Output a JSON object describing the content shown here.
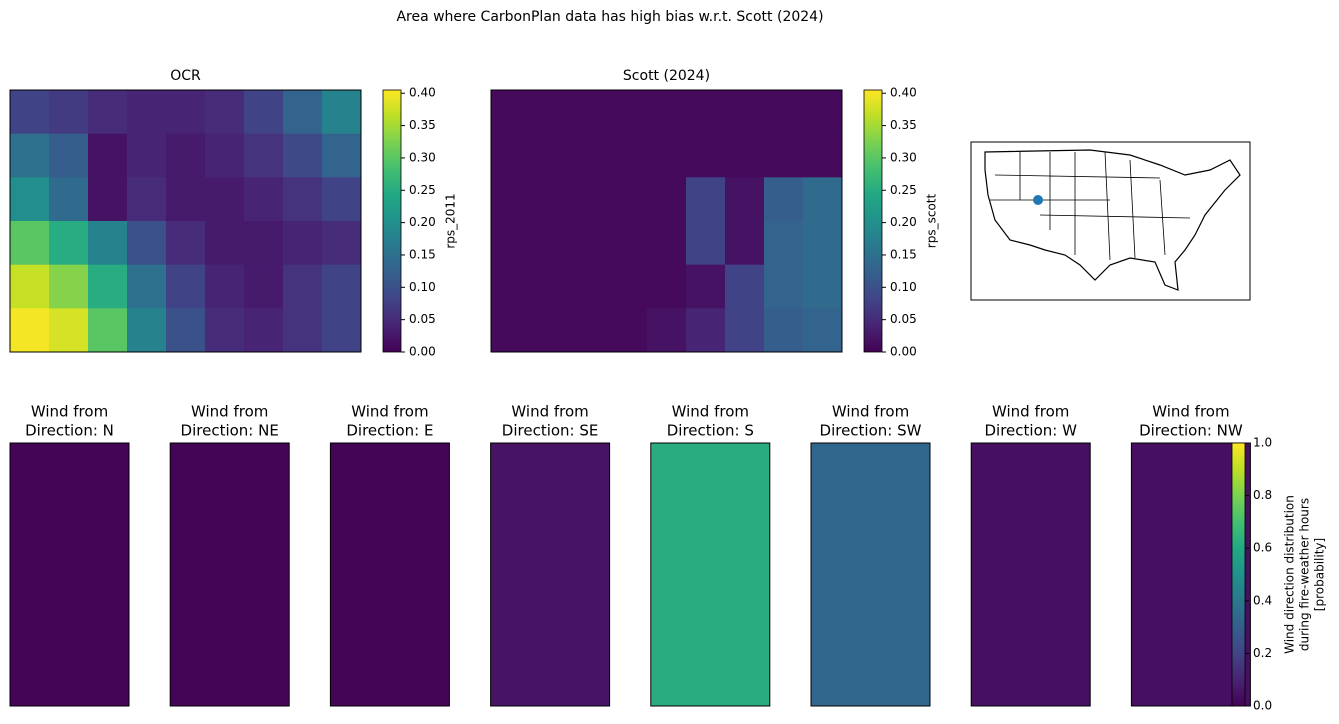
{
  "title": "Area where CarbonPlan data has high bias w.r.t. Scott (2024)",
  "chart_data": [
    {
      "type": "heatmap",
      "title": "OCR",
      "colormap": "viridis",
      "colorbar_label": "rps_2011",
      "zlim": [
        0,
        0.405
      ],
      "zticks": [
        {
          "value": 0,
          "label": "0.00"
        },
        {
          "value": 0.05,
          "label": "0.05"
        },
        {
          "value": 0.1,
          "label": "0.10"
        },
        {
          "value": 0.15,
          "label": "0.15"
        },
        {
          "value": 0.2,
          "label": "0.20"
        },
        {
          "value": 0.25,
          "label": "0.25"
        },
        {
          "value": 0.3,
          "label": "0.30"
        },
        {
          "value": 0.35,
          "label": "0.35"
        },
        {
          "value": 0.4,
          "label": "0.40"
        }
      ],
      "values": [
        [
          0.08,
          0.07,
          0.05,
          0.04,
          0.04,
          0.05,
          0.08,
          0.13,
          0.18
        ],
        [
          0.15,
          0.12,
          0.02,
          0.04,
          0.03,
          0.04,
          0.06,
          0.09,
          0.13
        ],
        [
          0.2,
          0.14,
          0.02,
          0.05,
          0.03,
          0.03,
          0.04,
          0.06,
          0.08
        ],
        [
          0.3,
          0.25,
          0.18,
          0.1,
          0.05,
          0.03,
          0.03,
          0.04,
          0.05
        ],
        [
          0.37,
          0.33,
          0.25,
          0.15,
          0.08,
          0.04,
          0.03,
          0.06,
          0.08
        ],
        [
          0.4,
          0.38,
          0.3,
          0.18,
          0.1,
          0.05,
          0.04,
          0.06,
          0.08
        ]
      ]
    },
    {
      "type": "heatmap",
      "title": "Scott (2024)",
      "colormap": "viridis",
      "colorbar_label": "rps_scott",
      "zlim": [
        0,
        0.405
      ],
      "zticks": [
        {
          "value": 0,
          "label": "0.00"
        },
        {
          "value": 0.05,
          "label": "0.05"
        },
        {
          "value": 0.1,
          "label": "0.10"
        },
        {
          "value": 0.15,
          "label": "0.15"
        },
        {
          "value": 0.2,
          "label": "0.20"
        },
        {
          "value": 0.25,
          "label": "0.25"
        },
        {
          "value": 0.3,
          "label": "0.30"
        },
        {
          "value": 0.35,
          "label": "0.35"
        },
        {
          "value": 0.4,
          "label": "0.40"
        }
      ],
      "values": [
        [
          0.01,
          0.01,
          0.01,
          0.01,
          0.01,
          0.01,
          0.01,
          0.01,
          0.01
        ],
        [
          0.01,
          0.01,
          0.01,
          0.01,
          0.01,
          0.01,
          0.01,
          0.01,
          0.01
        ],
        [
          0.01,
          0.01,
          0.01,
          0.01,
          0.01,
          0.08,
          0.02,
          0.12,
          0.14
        ],
        [
          0.01,
          0.01,
          0.01,
          0.01,
          0.01,
          0.08,
          0.02,
          0.13,
          0.14
        ],
        [
          0.01,
          0.01,
          0.01,
          0.01,
          0.01,
          0.02,
          0.08,
          0.13,
          0.14
        ],
        [
          0.01,
          0.01,
          0.01,
          0.01,
          0.02,
          0.04,
          0.08,
          0.12,
          0.13
        ]
      ]
    },
    {
      "type": "panels",
      "colormap": "viridis",
      "panel_title": "Wind from",
      "categories": [
        "Direction: N",
        "Direction: NE",
        "Direction: E",
        "Direction: SE",
        "Direction: S",
        "Direction: SW",
        "Direction: W",
        "Direction: NW"
      ],
      "values": [
        0.01,
        0.01,
        0.01,
        0.05,
        0.62,
        0.33,
        0.04,
        0.04
      ],
      "zlim": [
        0,
        1
      ],
      "zticks": [
        {
          "value": 0,
          "label": "0.0"
        },
        {
          "value": 0.2,
          "label": "0.2"
        },
        {
          "value": 0.4,
          "label": "0.4"
        },
        {
          "value": 0.6,
          "label": "0.6"
        },
        {
          "value": 0.8,
          "label": "0.8"
        },
        {
          "value": 1,
          "label": "1.0"
        }
      ],
      "colorbar_label": [
        "Wind direction distribution",
        "during fire-weather hours",
        "[probability]"
      ]
    }
  ]
}
